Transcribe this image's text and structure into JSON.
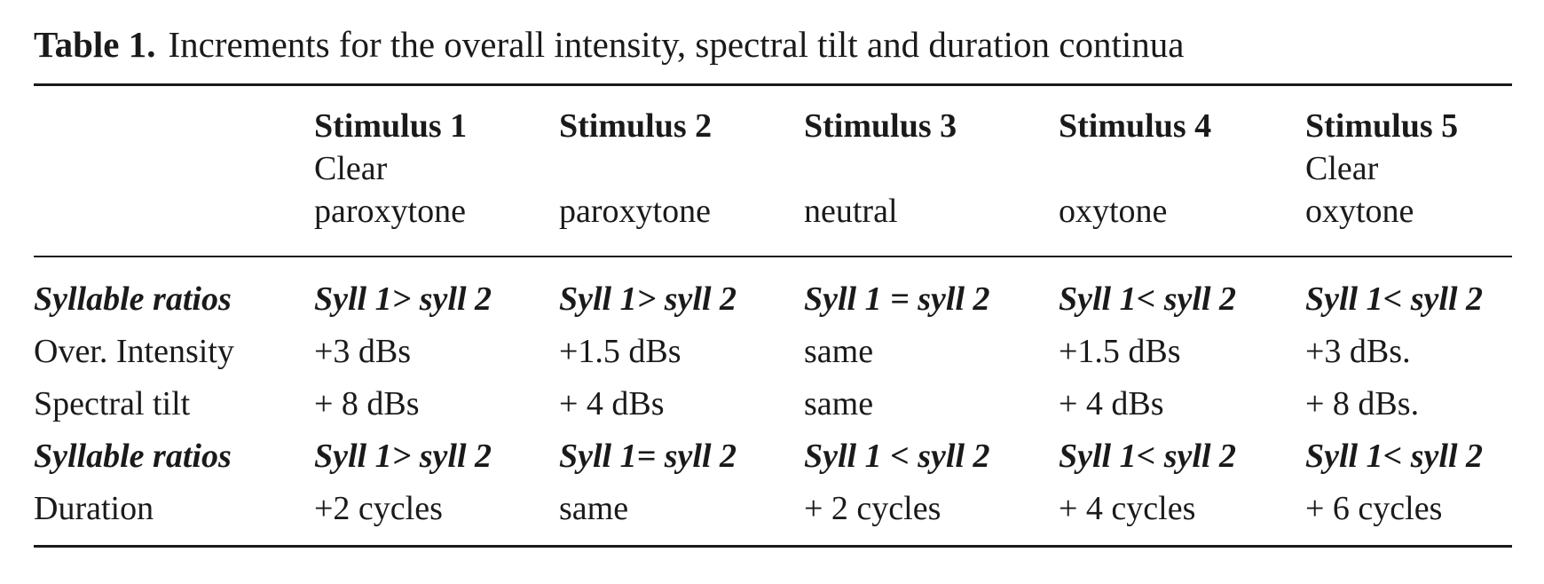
{
  "caption": {
    "label": "Table 1.",
    "text": "Increments for the overall intensity, spectral tilt and duration continua"
  },
  "columns": [
    {
      "stimulus": "Stimulus 1",
      "desc_line1": "Clear",
      "desc_line2": "paroxytone"
    },
    {
      "stimulus": "Stimulus 2",
      "desc_line1": "",
      "desc_line2": "paroxytone"
    },
    {
      "stimulus": "Stimulus 3",
      "desc_line1": "",
      "desc_line2": "neutral"
    },
    {
      "stimulus": "Stimulus 4",
      "desc_line1": "",
      "desc_line2": "oxytone"
    },
    {
      "stimulus": "Stimulus 5",
      "desc_line1": "Clear",
      "desc_line2": "oxytone"
    }
  ],
  "rows": [
    {
      "label": "Syllable ratios",
      "emphasis": true,
      "cells": [
        "Syll 1> syll 2",
        "Syll 1> syll 2",
        "Syll 1 = syll 2",
        "Syll 1< syll 2",
        "Syll 1< syll 2"
      ]
    },
    {
      "label": "Over. Intensity",
      "emphasis": false,
      "cells": [
        "+3 dBs",
        "+1.5 dBs",
        "same",
        "+1.5 dBs",
        "+3 dBs."
      ]
    },
    {
      "label": "Spectral tilt",
      "emphasis": false,
      "cells": [
        "+ 8 dBs",
        "+ 4 dBs",
        "same",
        "+ 4 dBs",
        "+ 8 dBs."
      ]
    },
    {
      "label": "Syllable ratios",
      "emphasis": true,
      "cells": [
        "Syll 1> syll 2",
        "Syll 1= syll 2",
        "Syll 1 < syll 2",
        "Syll 1< syll 2",
        "Syll 1< syll 2"
      ]
    },
    {
      "label": "Duration",
      "emphasis": false,
      "cells": [
        "+2 cycles",
        "same",
        "+ 2 cycles",
        "+ 4 cycles",
        "+ 6 cycles"
      ]
    }
  ]
}
